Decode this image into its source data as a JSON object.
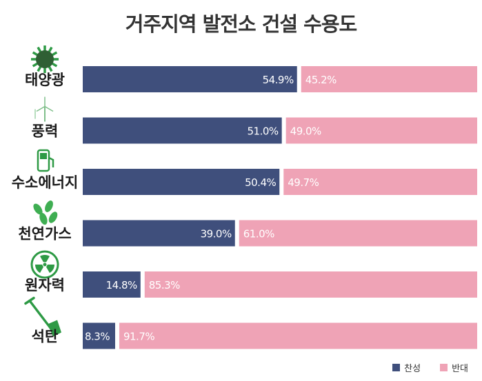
{
  "title": "거주지역 발전소 건설 수용도",
  "colors": {
    "favor": "#3f4f7c",
    "oppose": "#efa3b6",
    "icon": "#2e9a45"
  },
  "legend": {
    "favor": "찬성",
    "oppose": "반대"
  },
  "chart_data": {
    "type": "bar",
    "orientation": "horizontal",
    "stacked": true,
    "title": "거주지역 발전소 건설 수용도",
    "categories": [
      "태양광",
      "풍력",
      "수소에너지",
      "천연가스",
      "원자력",
      "석탄"
    ],
    "icons": [
      "sun-icon",
      "wind-turbine-icon",
      "hydrogen-pump-icon",
      "leaf-icon",
      "radiation-icon",
      "shovel-icon"
    ],
    "series": [
      {
        "name": "찬성",
        "values": [
          54.9,
          51.0,
          50.4,
          39.0,
          14.8,
          8.3
        ],
        "labels": [
          "54.9%",
          "51.0%",
          "50.4%",
          "39.0%",
          "14.8%",
          "8.3%"
        ]
      },
      {
        "name": "반대",
        "values": [
          45.2,
          49.0,
          49.7,
          61.0,
          85.3,
          91.7
        ],
        "labels": [
          "45.2%",
          "49.0%",
          "49.7%",
          "61.0%",
          "85.3%",
          "91.7%"
        ]
      }
    ],
    "xlim": [
      0,
      100
    ],
    "grid": false,
    "legend_position": "bottom-right"
  }
}
